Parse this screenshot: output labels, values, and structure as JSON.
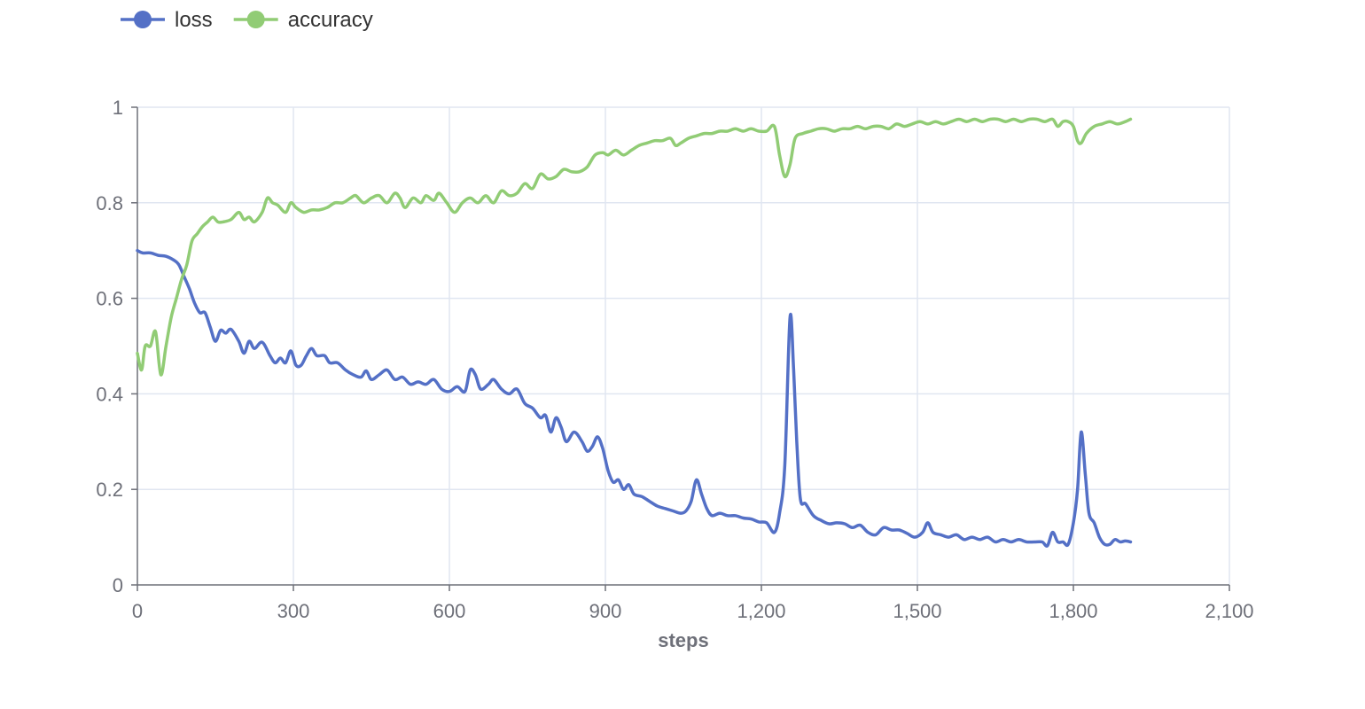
{
  "chart_data": {
    "type": "line",
    "xlabel": "steps",
    "ylabel": "",
    "xlim": [
      0,
      2100
    ],
    "ylim": [
      0,
      1
    ],
    "x_ticks": [
      "0",
      "300",
      "600",
      "900",
      "1,200",
      "1,500",
      "1,800",
      "2,100"
    ],
    "y_ticks": [
      "0",
      "0.2",
      "0.4",
      "0.6",
      "0.8",
      "1"
    ],
    "grid": true,
    "legend_position": "top-left",
    "series": [
      {
        "name": "loss",
        "color": "#5470c6",
        "points": [
          [
            0,
            0.7
          ],
          [
            10,
            0.695
          ],
          [
            25,
            0.695
          ],
          [
            40,
            0.69
          ],
          [
            55,
            0.688
          ],
          [
            70,
            0.68
          ],
          [
            80,
            0.67
          ],
          [
            90,
            0.645
          ],
          [
            100,
            0.62
          ],
          [
            110,
            0.59
          ],
          [
            120,
            0.57
          ],
          [
            130,
            0.57
          ],
          [
            140,
            0.54
          ],
          [
            150,
            0.51
          ],
          [
            160,
            0.533
          ],
          [
            170,
            0.527
          ],
          [
            180,
            0.535
          ],
          [
            195,
            0.51
          ],
          [
            205,
            0.485
          ],
          [
            215,
            0.51
          ],
          [
            225,
            0.495
          ],
          [
            240,
            0.508
          ],
          [
            255,
            0.48
          ],
          [
            265,
            0.465
          ],
          [
            275,
            0.475
          ],
          [
            285,
            0.465
          ],
          [
            295,
            0.49
          ],
          [
            305,
            0.46
          ],
          [
            315,
            0.46
          ],
          [
            325,
            0.48
          ],
          [
            335,
            0.495
          ],
          [
            345,
            0.48
          ],
          [
            360,
            0.48
          ],
          [
            370,
            0.465
          ],
          [
            385,
            0.465
          ],
          [
            400,
            0.45
          ],
          [
            415,
            0.44
          ],
          [
            430,
            0.435
          ],
          [
            440,
            0.448
          ],
          [
            450,
            0.43
          ],
          [
            465,
            0.44
          ],
          [
            480,
            0.45
          ],
          [
            495,
            0.43
          ],
          [
            510,
            0.435
          ],
          [
            525,
            0.42
          ],
          [
            540,
            0.425
          ],
          [
            555,
            0.42
          ],
          [
            570,
            0.43
          ],
          [
            585,
            0.41
          ],
          [
            600,
            0.405
          ],
          [
            615,
            0.415
          ],
          [
            630,
            0.405
          ],
          [
            640,
            0.45
          ],
          [
            650,
            0.44
          ],
          [
            660,
            0.41
          ],
          [
            675,
            0.42
          ],
          [
            685,
            0.43
          ],
          [
            700,
            0.41
          ],
          [
            715,
            0.4
          ],
          [
            730,
            0.41
          ],
          [
            745,
            0.38
          ],
          [
            760,
            0.37
          ],
          [
            775,
            0.35
          ],
          [
            785,
            0.355
          ],
          [
            795,
            0.32
          ],
          [
            805,
            0.35
          ],
          [
            815,
            0.33
          ],
          [
            825,
            0.3
          ],
          [
            840,
            0.32
          ],
          [
            855,
            0.3
          ],
          [
            865,
            0.28
          ],
          [
            875,
            0.29
          ],
          [
            885,
            0.31
          ],
          [
            895,
            0.285
          ],
          [
            905,
            0.24
          ],
          [
            915,
            0.215
          ],
          [
            925,
            0.22
          ],
          [
            935,
            0.2
          ],
          [
            945,
            0.21
          ],
          [
            955,
            0.19
          ],
          [
            970,
            0.185
          ],
          [
            985,
            0.175
          ],
          [
            1000,
            0.165
          ],
          [
            1015,
            0.16
          ],
          [
            1030,
            0.155
          ],
          [
            1045,
            0.15
          ],
          [
            1055,
            0.155
          ],
          [
            1065,
            0.175
          ],
          [
            1075,
            0.22
          ],
          [
            1085,
            0.19
          ],
          [
            1095,
            0.16
          ],
          [
            1105,
            0.145
          ],
          [
            1120,
            0.15
          ],
          [
            1135,
            0.145
          ],
          [
            1150,
            0.145
          ],
          [
            1165,
            0.14
          ],
          [
            1180,
            0.138
          ],
          [
            1195,
            0.132
          ],
          [
            1210,
            0.13
          ],
          [
            1225,
            0.11
          ],
          [
            1235,
            0.15
          ],
          [
            1245,
            0.25
          ],
          [
            1255,
            0.56
          ],
          [
            1262,
            0.45
          ],
          [
            1268,
            0.3
          ],
          [
            1275,
            0.18
          ],
          [
            1285,
            0.17
          ],
          [
            1300,
            0.145
          ],
          [
            1315,
            0.135
          ],
          [
            1330,
            0.128
          ],
          [
            1345,
            0.13
          ],
          [
            1360,
            0.128
          ],
          [
            1375,
            0.12
          ],
          [
            1390,
            0.125
          ],
          [
            1405,
            0.11
          ],
          [
            1420,
            0.105
          ],
          [
            1435,
            0.12
          ],
          [
            1450,
            0.115
          ],
          [
            1465,
            0.115
          ],
          [
            1480,
            0.108
          ],
          [
            1495,
            0.1
          ],
          [
            1510,
            0.11
          ],
          [
            1520,
            0.13
          ],
          [
            1530,
            0.11
          ],
          [
            1545,
            0.105
          ],
          [
            1560,
            0.1
          ],
          [
            1575,
            0.105
          ],
          [
            1590,
            0.095
          ],
          [
            1605,
            0.1
          ],
          [
            1620,
            0.095
          ],
          [
            1635,
            0.1
          ],
          [
            1650,
            0.09
          ],
          [
            1665,
            0.095
          ],
          [
            1680,
            0.09
          ],
          [
            1695,
            0.095
          ],
          [
            1710,
            0.09
          ],
          [
            1725,
            0.09
          ],
          [
            1740,
            0.09
          ],
          [
            1750,
            0.082
          ],
          [
            1760,
            0.11
          ],
          [
            1770,
            0.09
          ],
          [
            1780,
            0.09
          ],
          [
            1790,
            0.085
          ],
          [
            1800,
            0.13
          ],
          [
            1808,
            0.2
          ],
          [
            1815,
            0.32
          ],
          [
            1823,
            0.23
          ],
          [
            1830,
            0.15
          ],
          [
            1840,
            0.13
          ],
          [
            1850,
            0.1
          ],
          [
            1860,
            0.085
          ],
          [
            1870,
            0.085
          ],
          [
            1880,
            0.095
          ],
          [
            1890,
            0.09
          ],
          [
            1900,
            0.092
          ],
          [
            1910,
            0.09
          ]
        ]
      },
      {
        "name": "accuracy",
        "color": "#91cc75",
        "points": [
          [
            0,
            0.485
          ],
          [
            8,
            0.45
          ],
          [
            15,
            0.5
          ],
          [
            25,
            0.5
          ],
          [
            35,
            0.53
          ],
          [
            45,
            0.44
          ],
          [
            55,
            0.5
          ],
          [
            65,
            0.56
          ],
          [
            75,
            0.6
          ],
          [
            85,
            0.64
          ],
          [
            95,
            0.67
          ],
          [
            105,
            0.72
          ],
          [
            115,
            0.735
          ],
          [
            125,
            0.75
          ],
          [
            135,
            0.76
          ],
          [
            145,
            0.77
          ],
          [
            155,
            0.76
          ],
          [
            165,
            0.76
          ],
          [
            180,
            0.765
          ],
          [
            195,
            0.78
          ],
          [
            205,
            0.765
          ],
          [
            215,
            0.77
          ],
          [
            225,
            0.76
          ],
          [
            240,
            0.78
          ],
          [
            250,
            0.81
          ],
          [
            260,
            0.8
          ],
          [
            270,
            0.795
          ],
          [
            285,
            0.78
          ],
          [
            295,
            0.8
          ],
          [
            305,
            0.79
          ],
          [
            320,
            0.78
          ],
          [
            335,
            0.785
          ],
          [
            350,
            0.785
          ],
          [
            365,
            0.79
          ],
          [
            380,
            0.8
          ],
          [
            395,
            0.8
          ],
          [
            410,
            0.81
          ],
          [
            420,
            0.815
          ],
          [
            435,
            0.8
          ],
          [
            450,
            0.81
          ],
          [
            465,
            0.815
          ],
          [
            480,
            0.8
          ],
          [
            495,
            0.82
          ],
          [
            505,
            0.81
          ],
          [
            515,
            0.79
          ],
          [
            530,
            0.81
          ],
          [
            545,
            0.8
          ],
          [
            555,
            0.815
          ],
          [
            570,
            0.805
          ],
          [
            580,
            0.82
          ],
          [
            595,
            0.8
          ],
          [
            610,
            0.78
          ],
          [
            625,
            0.8
          ],
          [
            640,
            0.81
          ],
          [
            655,
            0.8
          ],
          [
            670,
            0.815
          ],
          [
            685,
            0.8
          ],
          [
            700,
            0.825
          ],
          [
            715,
            0.815
          ],
          [
            730,
            0.82
          ],
          [
            745,
            0.84
          ],
          [
            760,
            0.83
          ],
          [
            775,
            0.86
          ],
          [
            790,
            0.85
          ],
          [
            805,
            0.855
          ],
          [
            820,
            0.87
          ],
          [
            835,
            0.865
          ],
          [
            850,
            0.865
          ],
          [
            865,
            0.875
          ],
          [
            880,
            0.9
          ],
          [
            895,
            0.905
          ],
          [
            905,
            0.9
          ],
          [
            920,
            0.91
          ],
          [
            935,
            0.9
          ],
          [
            950,
            0.91
          ],
          [
            965,
            0.92
          ],
          [
            980,
            0.925
          ],
          [
            995,
            0.93
          ],
          [
            1010,
            0.93
          ],
          [
            1025,
            0.935
          ],
          [
            1035,
            0.92
          ],
          [
            1045,
            0.925
          ],
          [
            1060,
            0.935
          ],
          [
            1075,
            0.94
          ],
          [
            1090,
            0.945
          ],
          [
            1105,
            0.945
          ],
          [
            1120,
            0.95
          ],
          [
            1135,
            0.95
          ],
          [
            1150,
            0.955
          ],
          [
            1165,
            0.95
          ],
          [
            1180,
            0.955
          ],
          [
            1195,
            0.95
          ],
          [
            1210,
            0.95
          ],
          [
            1225,
            0.96
          ],
          [
            1235,
            0.9
          ],
          [
            1245,
            0.855
          ],
          [
            1255,
            0.88
          ],
          [
            1265,
            0.935
          ],
          [
            1280,
            0.945
          ],
          [
            1295,
            0.95
          ],
          [
            1310,
            0.955
          ],
          [
            1325,
            0.955
          ],
          [
            1340,
            0.95
          ],
          [
            1355,
            0.955
          ],
          [
            1370,
            0.955
          ],
          [
            1385,
            0.96
          ],
          [
            1400,
            0.955
          ],
          [
            1415,
            0.96
          ],
          [
            1430,
            0.96
          ],
          [
            1445,
            0.955
          ],
          [
            1460,
            0.965
          ],
          [
            1475,
            0.96
          ],
          [
            1490,
            0.965
          ],
          [
            1505,
            0.97
          ],
          [
            1520,
            0.965
          ],
          [
            1535,
            0.97
          ],
          [
            1550,
            0.965
          ],
          [
            1565,
            0.97
          ],
          [
            1580,
            0.975
          ],
          [
            1595,
            0.97
          ],
          [
            1610,
            0.975
          ],
          [
            1625,
            0.97
          ],
          [
            1640,
            0.975
          ],
          [
            1655,
            0.975
          ],
          [
            1670,
            0.97
          ],
          [
            1685,
            0.975
          ],
          [
            1700,
            0.97
          ],
          [
            1715,
            0.975
          ],
          [
            1730,
            0.975
          ],
          [
            1745,
            0.97
          ],
          [
            1760,
            0.975
          ],
          [
            1770,
            0.96
          ],
          [
            1780,
            0.97
          ],
          [
            1790,
            0.97
          ],
          [
            1800,
            0.96
          ],
          [
            1808,
            0.93
          ],
          [
            1815,
            0.925
          ],
          [
            1825,
            0.945
          ],
          [
            1840,
            0.96
          ],
          [
            1855,
            0.965
          ],
          [
            1870,
            0.97
          ],
          [
            1885,
            0.965
          ],
          [
            1900,
            0.97
          ],
          [
            1910,
            0.975
          ]
        ]
      }
    ]
  }
}
